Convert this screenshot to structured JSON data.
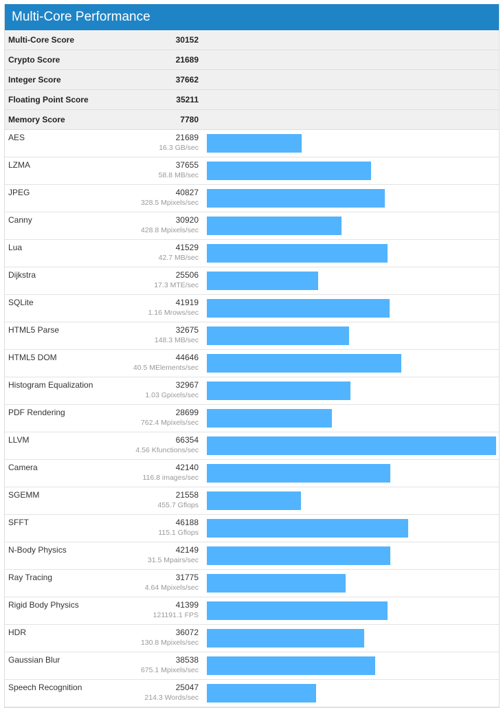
{
  "title": "Multi-Core Performance",
  "max_bar_score": 66354,
  "colors": {
    "header": "#1f84c5",
    "bar": "#52b4ff"
  },
  "summary": [
    {
      "name": "Multi-Core Score",
      "score": "30152"
    },
    {
      "name": "Crypto Score",
      "score": "21689"
    },
    {
      "name": "Integer Score",
      "score": "37662"
    },
    {
      "name": "Floating Point Score",
      "score": "35211"
    },
    {
      "name": "Memory Score",
      "score": "7780"
    }
  ],
  "benchmarks": [
    {
      "name": "AES",
      "score": "21689",
      "rate": "16.3 GB/sec"
    },
    {
      "name": "LZMA",
      "score": "37655",
      "rate": "58.8 MB/sec"
    },
    {
      "name": "JPEG",
      "score": "40827",
      "rate": "328.5 Mpixels/sec"
    },
    {
      "name": "Canny",
      "score": "30920",
      "rate": "428.8 Mpixels/sec"
    },
    {
      "name": "Lua",
      "score": "41529",
      "rate": "42.7 MB/sec"
    },
    {
      "name": "Dijkstra",
      "score": "25506",
      "rate": "17.3 MTE/sec"
    },
    {
      "name": "SQLite",
      "score": "41919",
      "rate": "1.16 Mrows/sec"
    },
    {
      "name": "HTML5 Parse",
      "score": "32675",
      "rate": "148.3 MB/sec"
    },
    {
      "name": "HTML5 DOM",
      "score": "44646",
      "rate": "40.5 MElements/sec"
    },
    {
      "name": "Histogram Equalization",
      "score": "32967",
      "rate": "1.03 Gpixels/sec"
    },
    {
      "name": "PDF Rendering",
      "score": "28699",
      "rate": "762.4 Mpixels/sec"
    },
    {
      "name": "LLVM",
      "score": "66354",
      "rate": "4.56 Kfunctions/sec"
    },
    {
      "name": "Camera",
      "score": "42140",
      "rate": "116.8 images/sec"
    },
    {
      "name": "SGEMM",
      "score": "21558",
      "rate": "455.7 Gflops"
    },
    {
      "name": "SFFT",
      "score": "46188",
      "rate": "115.1 Gflops"
    },
    {
      "name": "N-Body Physics",
      "score": "42149",
      "rate": "31.5 Mpairs/sec"
    },
    {
      "name": "Ray Tracing",
      "score": "31775",
      "rate": "4.64 Mpixels/sec"
    },
    {
      "name": "Rigid Body Physics",
      "score": "41399",
      "rate": "121191.1 FPS"
    },
    {
      "name": "HDR",
      "score": "36072",
      "rate": "130.8 Mpixels/sec"
    },
    {
      "name": "Gaussian Blur",
      "score": "38538",
      "rate": "675.1 Mpixels/sec"
    },
    {
      "name": "Speech Recognition",
      "score": "25047",
      "rate": "214.3 Words/sec"
    }
  ]
}
